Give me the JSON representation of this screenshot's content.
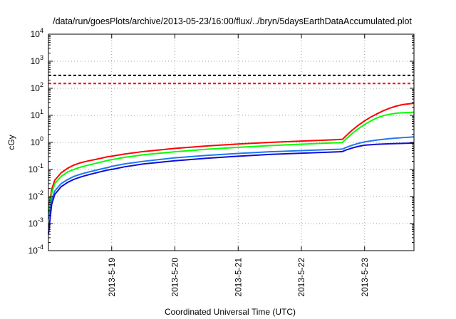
{
  "chart_data": {
    "type": "line",
    "title": "/data/run/goesPlots/archive/2013-05-23/16:00/flux/../bryn/5daysEarthDataAccumulated.plot",
    "xlabel": "Coordinated Universal Time (UTC)",
    "ylabel": "cGy",
    "yscale": "log",
    "ylim": [
      0.0001,
      10000
    ],
    "xlim": [
      0,
      5.78
    ],
    "y_tick_exponents": [
      "-4",
      "-3",
      "-2",
      "-1",
      "0",
      "1",
      "2",
      "3",
      "4"
    ],
    "y_tick_base": "10",
    "x_ticks": [
      {
        "x": 1,
        "label": "2013-5-19"
      },
      {
        "x": 2,
        "label": "2013-5-20"
      },
      {
        "x": 3,
        "label": "2013-5-21"
      },
      {
        "x": 4,
        "label": "2013-5-22"
      },
      {
        "x": 5,
        "label": "2013-5-23"
      }
    ],
    "grid": true,
    "series": [
      {
        "color": "#000000",
        "dashed": true,
        "x": [
          0,
          5.78
        ],
        "y": [
          300,
          300
        ]
      },
      {
        "color": "#ff0000",
        "dashed": true,
        "x": [
          0,
          5.78
        ],
        "y": [
          150,
          150
        ]
      },
      {
        "color": "#ff0000",
        "dashed": false,
        "x": [
          0,
          0.05,
          0.1,
          0.2,
          0.3,
          0.4,
          0.5,
          0.6,
          0.8,
          0.95,
          1.0,
          1.2,
          1.5,
          2.0,
          2.5,
          3.0,
          3.5,
          4.0,
          4.5,
          4.6,
          4.65,
          4.7,
          4.8,
          4.9,
          5.0,
          5.1,
          5.2,
          5.3,
          5.4,
          5.5,
          5.6,
          5.78
        ],
        "y": [
          0.003,
          0.018,
          0.04,
          0.075,
          0.11,
          0.145,
          0.175,
          0.2,
          0.25,
          0.3,
          0.31,
          0.37,
          0.46,
          0.6,
          0.74,
          0.87,
          1.0,
          1.12,
          1.25,
          1.28,
          1.3,
          1.7,
          2.8,
          4.3,
          6.3,
          8.7,
          11.5,
          15,
          18.5,
          22,
          25,
          28
        ]
      },
      {
        "color": "#00ff00",
        "dashed": false,
        "x": [
          0,
          0.05,
          0.1,
          0.2,
          0.3,
          0.4,
          0.5,
          0.6,
          0.8,
          0.95,
          1.0,
          1.2,
          1.5,
          2.0,
          2.5,
          3.0,
          3.5,
          4.0,
          4.5,
          4.6,
          4.65,
          4.7,
          4.8,
          4.9,
          5.0,
          5.1,
          5.2,
          5.3,
          5.4,
          5.5,
          5.6,
          5.78
        ],
        "y": [
          0.0025,
          0.013,
          0.03,
          0.055,
          0.08,
          0.1,
          0.12,
          0.14,
          0.18,
          0.22,
          0.23,
          0.28,
          0.35,
          0.45,
          0.56,
          0.66,
          0.76,
          0.86,
          0.96,
          0.98,
          1.0,
          1.3,
          2.1,
          3.2,
          4.6,
          6.3,
          8.2,
          9.8,
          11,
          12,
          12.5,
          13
        ]
      },
      {
        "color": "#1e78f0",
        "dashed": false,
        "x": [
          0,
          0.05,
          0.1,
          0.2,
          0.3,
          0.4,
          0.5,
          0.6,
          0.8,
          0.95,
          1.0,
          1.2,
          1.5,
          2.0,
          2.5,
          3.0,
          3.5,
          4.0,
          4.5,
          4.6,
          4.65,
          4.7,
          4.8,
          4.9,
          5.0,
          5.2,
          5.4,
          5.6,
          5.78
        ],
        "y": [
          0.0015,
          0.0075,
          0.016,
          0.03,
          0.042,
          0.055,
          0.066,
          0.077,
          0.1,
          0.12,
          0.13,
          0.16,
          0.2,
          0.27,
          0.33,
          0.39,
          0.45,
          0.5,
          0.55,
          0.56,
          0.57,
          0.64,
          0.78,
          0.92,
          1.05,
          1.23,
          1.38,
          1.5,
          1.6
        ]
      },
      {
        "color": "#1010d0",
        "dashed": false,
        "x": [
          0,
          0.05,
          0.1,
          0.2,
          0.3,
          0.4,
          0.5,
          0.6,
          0.8,
          0.95,
          1.0,
          1.2,
          1.5,
          2.0,
          2.5,
          3.0,
          3.5,
          4.0,
          4.5,
          4.6,
          4.65,
          4.7,
          4.8,
          4.9,
          5.0,
          5.2,
          5.4,
          5.6,
          5.78
        ],
        "y": [
          0.0004,
          0.005,
          0.012,
          0.023,
          0.033,
          0.043,
          0.052,
          0.061,
          0.08,
          0.097,
          0.1,
          0.125,
          0.16,
          0.21,
          0.26,
          0.31,
          0.36,
          0.4,
          0.44,
          0.45,
          0.46,
          0.52,
          0.62,
          0.71,
          0.79,
          0.85,
          0.89,
          0.92,
          0.95
        ]
      }
    ]
  }
}
